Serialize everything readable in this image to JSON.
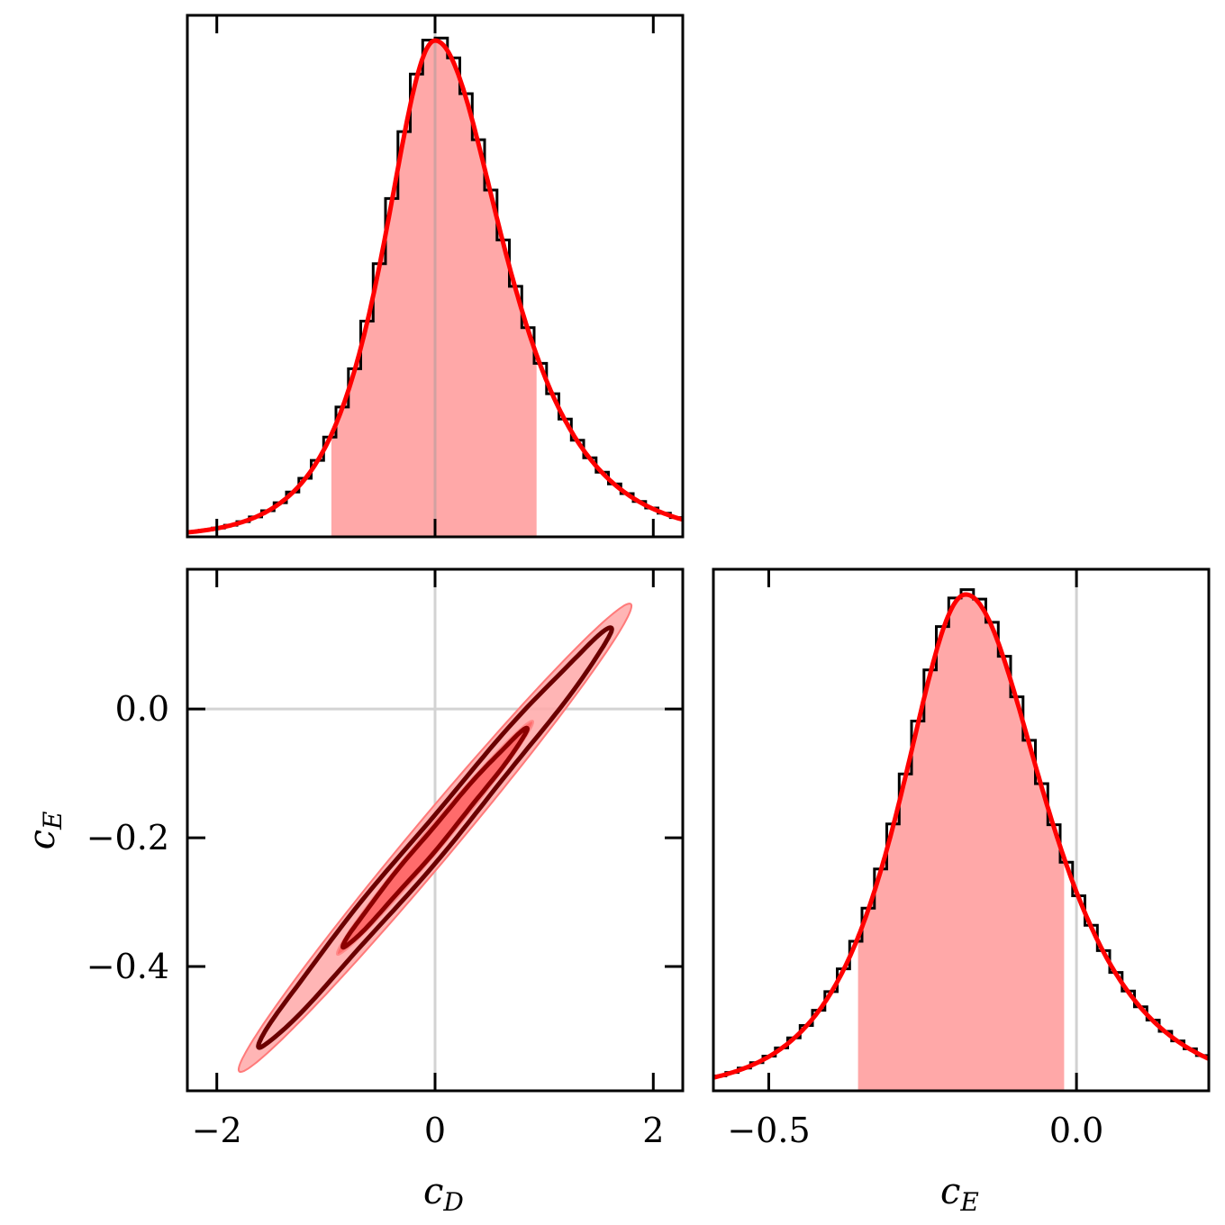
{
  "chart_data": [
    {
      "type": "histogram",
      "panel": "top-left",
      "variable": "c_D",
      "xlim": [
        -2.27,
        2.27
      ],
      "x_ticks": [
        -2,
        0,
        2
      ],
      "reference_line": 0,
      "peak": 0.0,
      "scale_left": 0.42,
      "scale_right": 0.56,
      "interval": [
        -0.95,
        0.93
      ],
      "fit_color": "#ff0000",
      "fill_color": "#ffa8a8"
    },
    {
      "type": "contour",
      "panel": "bottom-left",
      "xlabel_var": "c",
      "xlabel_sub": "D",
      "ylabel_var": "c",
      "ylabel_sub": "E",
      "xlim": [
        -2.27,
        2.27
      ],
      "ylim": [
        -0.593,
        0.217
      ],
      "x_ticks": [
        -2,
        0,
        2
      ],
      "x_tick_labels": [
        "−2",
        "0",
        "2"
      ],
      "y_ticks": [
        0.0,
        -0.2,
        -0.4
      ],
      "y_tick_labels": [
        "0.0",
        "−0.2",
        "−0.4"
      ],
      "reference_lines": {
        "x": 0,
        "y": 0
      },
      "center": [
        0.0,
        -0.2
      ],
      "contour_levels": [
        "68%",
        "95%"
      ],
      "outer_fill_extent_major": [
        -1.8,
        1.8
      ],
      "line_color": "#6b0000",
      "inner_fill_color": "#ff6b6b",
      "outer_fill_color": "#ffa8a8"
    },
    {
      "type": "histogram",
      "panel": "bottom-right",
      "variable": "c_E",
      "xlabel_var": "c",
      "xlabel_sub": "E",
      "xlim": [
        -0.59,
        0.215
      ],
      "x_ticks": [
        -0.5,
        0.0
      ],
      "x_tick_labels": [
        "−0.5",
        "0.0"
      ],
      "reference_line": 0,
      "peak": -0.18,
      "scale_left": 0.095,
      "scale_right": 0.115,
      "interval": [
        -0.355,
        -0.02
      ],
      "fit_color": "#ff0000",
      "fill_color": "#ffa8a8"
    }
  ]
}
